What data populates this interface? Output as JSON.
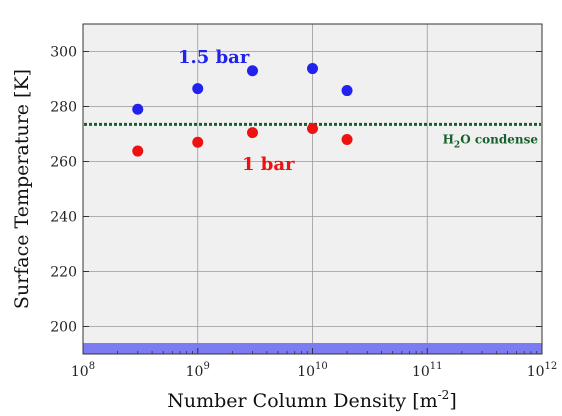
{
  "chart_data": {
    "type": "scatter",
    "title": "",
    "xlabel": "Number Column Density [m",
    "xlabel_sup": "-2",
    "xlabel_tail": "]",
    "ylabel": "Surface Temperature [K]",
    "xscale": "log",
    "xlim": [
      100000000.0,
      1000000000000.0
    ],
    "ylim": [
      190,
      310
    ],
    "grid": true,
    "x_ticks": [
      {
        "value": 100000000.0,
        "base": "10",
        "exp": "8"
      },
      {
        "value": 1000000000.0,
        "base": "10",
        "exp": "9"
      },
      {
        "value": 10000000000.0,
        "base": "10",
        "exp": "10"
      },
      {
        "value": 100000000000.0,
        "base": "10",
        "exp": "11"
      },
      {
        "value": 1000000000000.0,
        "base": "10",
        "exp": "12"
      }
    ],
    "y_ticks": [
      200,
      220,
      240,
      260,
      280,
      300
    ],
    "series": [
      {
        "name": "1.5 bar",
        "color": "#2222ee",
        "x": [
          300000000.0,
          1000000000.0,
          3000000000.0,
          10000000000.0,
          20000000000.0
        ],
        "y": [
          279,
          286.5,
          293,
          293.8,
          285.8
        ]
      },
      {
        "name": "1 bar",
        "color": "#ee1111",
        "x": [
          300000000.0,
          1000000000.0,
          3000000000.0,
          10000000000.0,
          20000000000.0
        ],
        "y": [
          263.8,
          267,
          270.5,
          272,
          268
        ]
      }
    ],
    "reference_line": {
      "y": 273.5,
      "color": "#14612a",
      "label_main": "H",
      "label_sub": "2",
      "label_tail": "O condense"
    },
    "band": {
      "y_from": 190,
      "y_to": 194,
      "color": "#7b7bf2"
    }
  }
}
